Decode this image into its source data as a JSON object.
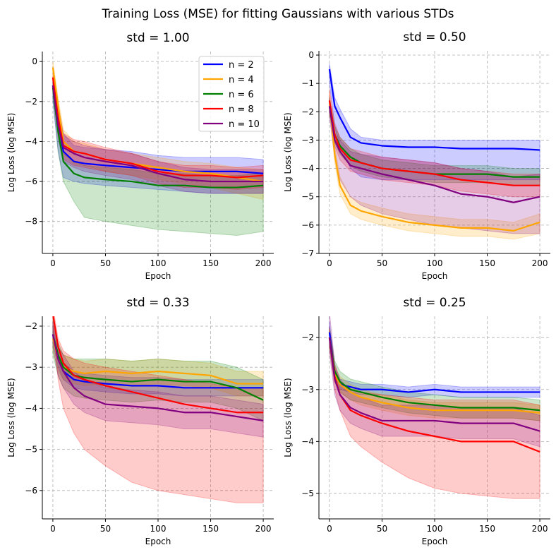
{
  "suptitle": "Training Loss (MSE) for fitting Gaussians with various STDs",
  "chart_data": [
    {
      "type": "line",
      "title": "std = 1.00",
      "xlabel": "Epoch",
      "ylabel": "Log Loss (log MSE)",
      "xlim": [
        -10,
        210
      ],
      "ylim": [
        -9.6,
        0.5
      ],
      "xticks": [
        0,
        50,
        100,
        150,
        200
      ],
      "yticks": [
        0,
        -2,
        -4,
        -6,
        -8
      ],
      "grid": true,
      "legend": "top-right",
      "x": [
        0,
        5,
        10,
        20,
        30,
        50,
        75,
        100,
        125,
        150,
        175,
        200
      ],
      "series": [
        {
          "name": "n = 2",
          "color": "#0000ff",
          "mean": [
            -1.2,
            -3.0,
            -4.5,
            -5.0,
            -5.1,
            -5.2,
            -5.3,
            -5.4,
            -5.5,
            -5.5,
            -5.5,
            -5.6
          ],
          "lower": [
            -2.0,
            -4.5,
            -5.8,
            -6.0,
            -6.1,
            -6.2,
            -6.3,
            -6.4,
            -6.5,
            -6.6,
            -6.6,
            -6.6
          ],
          "upper": [
            -0.8,
            -2.2,
            -3.6,
            -4.2,
            -4.3,
            -4.4,
            -4.5,
            -4.7,
            -4.8,
            -4.8,
            -4.8,
            -4.9
          ]
        },
        {
          "name": "n = 4",
          "color": "#ffa500",
          "mean": [
            -0.3,
            -2.2,
            -4.0,
            -4.5,
            -4.6,
            -4.9,
            -5.1,
            -5.3,
            -5.5,
            -5.6,
            -5.8,
            -6.0
          ],
          "lower": [
            -0.8,
            -2.8,
            -4.6,
            -5.1,
            -5.2,
            -5.5,
            -5.7,
            -5.9,
            -6.1,
            -6.3,
            -6.6,
            -6.9
          ],
          "upper": [
            0.0,
            -1.8,
            -3.4,
            -4.0,
            -4.1,
            -4.4,
            -4.6,
            -4.8,
            -5.0,
            -5.1,
            -5.3,
            -5.4
          ]
        },
        {
          "name": "n = 6",
          "color": "#008000",
          "mean": [
            -1.3,
            -3.5,
            -5.0,
            -5.6,
            -5.8,
            -5.9,
            -6.0,
            -6.2,
            -6.2,
            -6.3,
            -6.3,
            -6.2
          ],
          "lower": [
            -1.8,
            -4.5,
            -6.0,
            -7.0,
            -7.8,
            -8.0,
            -8.2,
            -8.4,
            -8.5,
            -8.6,
            -8.7,
            -8.5
          ],
          "upper": [
            -1.0,
            -3.0,
            -4.6,
            -5.0,
            -5.2,
            -5.3,
            -5.4,
            -5.6,
            -5.6,
            -5.7,
            -5.7,
            -5.6
          ]
        },
        {
          "name": "n = 8",
          "color": "#ff0000",
          "mean": [
            -0.8,
            -2.8,
            -4.2,
            -4.5,
            -4.6,
            -4.9,
            -5.1,
            -5.5,
            -5.7,
            -5.7,
            -5.8,
            -5.7
          ],
          "lower": [
            -1.4,
            -3.5,
            -4.9,
            -5.2,
            -5.3,
            -5.5,
            -5.7,
            -6.1,
            -6.3,
            -6.3,
            -6.4,
            -6.3
          ],
          "upper": [
            -0.6,
            -2.2,
            -3.6,
            -3.9,
            -4.0,
            -4.3,
            -4.6,
            -5.0,
            -5.2,
            -5.2,
            -5.3,
            -5.2
          ]
        },
        {
          "name": "n = 10",
          "color": "#800080",
          "mean": [
            -1.2,
            -3.2,
            -4.3,
            -4.6,
            -4.8,
            -5.0,
            -5.2,
            -5.6,
            -5.9,
            -6.0,
            -6.0,
            -6.0
          ],
          "lower": [
            -1.6,
            -3.9,
            -5.0,
            -5.3,
            -5.5,
            -5.7,
            -5.9,
            -6.2,
            -6.5,
            -6.6,
            -6.6,
            -6.6
          ],
          "upper": [
            -0.9,
            -2.6,
            -3.7,
            -4.0,
            -4.2,
            -4.4,
            -4.6,
            -5.0,
            -5.3,
            -5.4,
            -5.4,
            -5.4
          ]
        }
      ]
    },
    {
      "type": "line",
      "title": "std = 0.50",
      "xlabel": "Epoch",
      "ylabel": "Log Loss (log MSE)",
      "xlim": [
        -10,
        210
      ],
      "ylim": [
        -7.0,
        0.15
      ],
      "xticks": [
        0,
        50,
        100,
        150,
        200
      ],
      "yticks": [
        0,
        -1,
        -2,
        -3,
        -4,
        -5,
        -6,
        -7
      ],
      "grid": true,
      "x": [
        0,
        5,
        10,
        20,
        30,
        50,
        75,
        100,
        125,
        150,
        175,
        200
      ],
      "series": [
        {
          "name": "n = 2",
          "color": "#0000ff",
          "mean": [
            -0.5,
            -1.8,
            -2.2,
            -2.9,
            -3.1,
            -3.2,
            -3.25,
            -3.25,
            -3.3,
            -3.3,
            -3.3,
            -3.35
          ],
          "lower": [
            -1.0,
            -2.5,
            -3.2,
            -4.0,
            -4.3,
            -4.4,
            -4.4,
            -4.4,
            -4.4,
            -4.4,
            -4.4,
            -4.4
          ],
          "upper": [
            -0.3,
            -1.5,
            -1.9,
            -2.6,
            -2.9,
            -3.0,
            -3.0,
            -3.0,
            -3.0,
            -3.0,
            -3.0,
            -3.0
          ]
        },
        {
          "name": "n = 4",
          "color": "#ffa500",
          "mean": [
            -1.6,
            -3.5,
            -4.6,
            -5.3,
            -5.5,
            -5.7,
            -5.9,
            -6.0,
            -6.1,
            -6.1,
            -6.2,
            -5.9
          ],
          "lower": [
            -1.9,
            -3.8,
            -4.9,
            -5.6,
            -5.8,
            -6.0,
            -6.2,
            -6.3,
            -6.4,
            -6.4,
            -6.5,
            -6.3
          ],
          "upper": [
            -1.3,
            -3.2,
            -4.3,
            -5.0,
            -5.2,
            -5.4,
            -5.6,
            -5.7,
            -5.8,
            -5.8,
            -5.9,
            -5.6
          ]
        },
        {
          "name": "n = 6",
          "color": "#008000",
          "mean": [
            -1.8,
            -2.8,
            -3.2,
            -3.6,
            -3.8,
            -4.0,
            -4.1,
            -4.2,
            -4.2,
            -4.2,
            -4.3,
            -4.3
          ],
          "lower": [
            -2.1,
            -3.1,
            -3.5,
            -3.9,
            -4.1,
            -4.3,
            -4.4,
            -4.5,
            -4.5,
            -4.5,
            -4.6,
            -4.6
          ],
          "upper": [
            -1.5,
            -2.5,
            -2.9,
            -3.3,
            -3.5,
            -3.7,
            -3.8,
            -3.9,
            -3.9,
            -3.9,
            -4.0,
            -4.0
          ]
        },
        {
          "name": "n = 8",
          "color": "#ff0000",
          "mean": [
            -1.6,
            -2.8,
            -3.3,
            -3.7,
            -3.8,
            -4.0,
            -4.1,
            -4.2,
            -4.4,
            -4.5,
            -4.6,
            -4.6
          ],
          "lower": [
            -2.0,
            -3.2,
            -3.7,
            -4.1,
            -4.2,
            -4.4,
            -4.5,
            -4.6,
            -4.8,
            -4.9,
            -5.0,
            -5.0
          ],
          "upper": [
            -1.2,
            -2.4,
            -2.9,
            -3.3,
            -3.4,
            -3.6,
            -3.7,
            -3.8,
            -4.0,
            -4.1,
            -4.2,
            -4.2
          ]
        },
        {
          "name": "n = 10",
          "color": "#800080",
          "mean": [
            -1.8,
            -3.0,
            -3.4,
            -3.9,
            -4.0,
            -4.2,
            -4.4,
            -4.6,
            -4.9,
            -5.0,
            -5.2,
            -5.0
          ],
          "lower": [
            -2.2,
            -3.6,
            -4.4,
            -5.0,
            -5.3,
            -5.6,
            -5.8,
            -6.0,
            -6.1,
            -6.2,
            -6.3,
            -6.3
          ],
          "upper": [
            -1.5,
            -2.6,
            -3.0,
            -3.4,
            -3.5,
            -3.6,
            -3.7,
            -3.8,
            -4.0,
            -4.1,
            -4.3,
            -4.2
          ]
        }
      ]
    },
    {
      "type": "line",
      "title": "std = 0.33",
      "xlabel": "Epoch",
      "ylabel": "Log Loss (log MSE)",
      "xlim": [
        -10,
        210
      ],
      "ylim": [
        -6.69,
        -1.76
      ],
      "xticks": [
        0,
        50,
        100,
        150,
        200
      ],
      "yticks": [
        -2,
        -3,
        -4,
        -5,
        -6
      ],
      "grid": true,
      "x": [
        0,
        5,
        10,
        20,
        30,
        50,
        75,
        100,
        125,
        150,
        175,
        200
      ],
      "series": [
        {
          "name": "n = 2",
          "color": "#0000ff",
          "mean": [
            -2.2,
            -2.8,
            -3.1,
            -3.3,
            -3.35,
            -3.4,
            -3.45,
            -3.45,
            -3.5,
            -3.5,
            -3.5,
            -3.5
          ],
          "lower": [
            -2.4,
            -3.0,
            -3.3,
            -3.5,
            -3.55,
            -3.6,
            -3.65,
            -3.65,
            -3.7,
            -3.7,
            -3.7,
            -3.7
          ],
          "upper": [
            -2.0,
            -2.6,
            -2.9,
            -3.1,
            -3.15,
            -3.2,
            -3.25,
            -3.25,
            -3.3,
            -3.3,
            -3.3,
            -3.3
          ]
        },
        {
          "name": "n = 4",
          "color": "#ffa500",
          "mean": [
            -2.3,
            -2.8,
            -3.0,
            -3.1,
            -3.15,
            -3.1,
            -3.15,
            -3.1,
            -3.15,
            -3.2,
            -3.4,
            -3.4
          ],
          "lower": [
            -2.6,
            -3.1,
            -3.3,
            -3.4,
            -3.45,
            -3.4,
            -3.45,
            -3.4,
            -3.45,
            -3.5,
            -3.7,
            -3.7
          ],
          "upper": [
            -2.0,
            -2.5,
            -2.7,
            -2.8,
            -2.85,
            -2.8,
            -2.85,
            -2.8,
            -2.85,
            -2.9,
            -3.1,
            -3.1
          ]
        },
        {
          "name": "n = 6",
          "color": "#008000",
          "mean": [
            -2.2,
            -2.7,
            -3.0,
            -3.2,
            -3.25,
            -3.3,
            -3.35,
            -3.3,
            -3.35,
            -3.35,
            -3.5,
            -3.8
          ],
          "lower": [
            -2.7,
            -3.2,
            -3.5,
            -3.7,
            -3.75,
            -3.8,
            -3.85,
            -3.8,
            -3.85,
            -3.85,
            -4.0,
            -4.3
          ],
          "upper": [
            -1.8,
            -2.4,
            -2.7,
            -2.8,
            -2.8,
            -2.8,
            -2.85,
            -2.8,
            -2.85,
            -2.85,
            -3.0,
            -3.3
          ]
        },
        {
          "name": "n = 8",
          "color": "#ff0000",
          "mean": [
            -1.7,
            -2.5,
            -2.9,
            -3.2,
            -3.3,
            -3.45,
            -3.6,
            -3.75,
            -3.9,
            -4.0,
            -4.1,
            -4.1
          ],
          "lower": [
            -2.0,
            -3.3,
            -4.0,
            -4.6,
            -5.0,
            -5.4,
            -5.8,
            -6.0,
            -6.1,
            -6.2,
            -6.3,
            -6.3
          ],
          "upper": [
            -1.5,
            -2.3,
            -2.6,
            -2.8,
            -2.9,
            -3.0,
            -3.1,
            -3.2,
            -3.3,
            -3.4,
            -3.5,
            -3.5
          ]
        },
        {
          "name": "n = 10",
          "color": "#800080",
          "mean": [
            -2.2,
            -2.8,
            -3.1,
            -3.5,
            -3.7,
            -3.9,
            -3.95,
            -4.0,
            -4.1,
            -4.1,
            -4.2,
            -4.3
          ],
          "lower": [
            -2.5,
            -3.2,
            -3.5,
            -3.9,
            -4.1,
            -4.3,
            -4.35,
            -4.4,
            -4.5,
            -4.5,
            -4.6,
            -4.7
          ],
          "upper": [
            -1.9,
            -2.5,
            -2.7,
            -3.1,
            -3.3,
            -3.5,
            -3.55,
            -3.6,
            -3.7,
            -3.7,
            -3.8,
            -3.9
          ]
        }
      ]
    },
    {
      "type": "line",
      "title": "std = 0.25",
      "xlabel": "Epoch",
      "ylabel": "Log Loss (log MSE)",
      "xlim": [
        -10,
        210
      ],
      "ylim": [
        -5.49,
        -1.59
      ],
      "xticks": [
        0,
        50,
        100,
        150,
        200
      ],
      "yticks": [
        -2,
        -3,
        -4,
        -5
      ],
      "grid": true,
      "x": [
        0,
        5,
        10,
        20,
        30,
        50,
        75,
        100,
        125,
        150,
        175,
        200
      ],
      "series": [
        {
          "name": "n = 2",
          "color": "#0000ff",
          "mean": [
            -1.9,
            -2.7,
            -2.9,
            -2.95,
            -3.0,
            -3.0,
            -3.05,
            -3.0,
            -3.05,
            -3.05,
            -3.05,
            -3.05
          ],
          "lower": [
            -2.0,
            -2.8,
            -3.0,
            -3.05,
            -3.1,
            -3.1,
            -3.15,
            -3.1,
            -3.15,
            -3.15,
            -3.15,
            -3.15
          ],
          "upper": [
            -1.7,
            -2.6,
            -2.8,
            -2.85,
            -2.9,
            -2.9,
            -2.95,
            -2.9,
            -2.95,
            -2.95,
            -2.95,
            -2.95
          ]
        },
        {
          "name": "n = 4",
          "color": "#ffa500",
          "mean": [
            -2.0,
            -2.7,
            -2.9,
            -3.05,
            -3.15,
            -3.25,
            -3.35,
            -3.4,
            -3.4,
            -3.4,
            -3.4,
            -3.45
          ],
          "lower": [
            -2.15,
            -2.85,
            -3.05,
            -3.2,
            -3.3,
            -3.4,
            -3.5,
            -3.55,
            -3.55,
            -3.55,
            -3.55,
            -3.6
          ],
          "upper": [
            -1.85,
            -2.55,
            -2.75,
            -2.9,
            -3.0,
            -3.1,
            -3.2,
            -3.25,
            -3.25,
            -3.25,
            -3.25,
            -3.3
          ]
        },
        {
          "name": "n = 6",
          "color": "#008000",
          "mean": [
            -2.0,
            -2.65,
            -2.85,
            -3.0,
            -3.05,
            -3.15,
            -3.25,
            -3.3,
            -3.35,
            -3.35,
            -3.35,
            -3.4
          ],
          "lower": [
            -2.2,
            -2.85,
            -3.05,
            -3.2,
            -3.25,
            -3.35,
            -3.45,
            -3.5,
            -3.55,
            -3.55,
            -3.55,
            -3.6
          ],
          "upper": [
            -1.8,
            -2.45,
            -2.65,
            -2.8,
            -2.85,
            -2.95,
            -3.05,
            -3.1,
            -3.15,
            -3.15,
            -3.15,
            -3.2
          ]
        },
        {
          "name": "n = 8",
          "color": "#ff0000",
          "mean": [
            -2.0,
            -2.75,
            -3.1,
            -3.4,
            -3.5,
            -3.65,
            -3.8,
            -3.9,
            -4.0,
            -4.0,
            -4.0,
            -4.2
          ],
          "lower": [
            -2.2,
            -3.0,
            -3.4,
            -3.9,
            -4.1,
            -4.4,
            -4.7,
            -4.9,
            -5.0,
            -5.05,
            -5.1,
            -5.1
          ],
          "upper": [
            -1.8,
            -2.55,
            -2.85,
            -3.0,
            -3.05,
            -3.1,
            -3.15,
            -3.2,
            -3.2,
            -3.2,
            -3.2,
            -3.3
          ]
        },
        {
          "name": "n = 10",
          "color": "#800080",
          "mean": [
            -2.0,
            -2.8,
            -3.1,
            -3.35,
            -3.45,
            -3.6,
            -3.6,
            -3.6,
            -3.65,
            -3.65,
            -3.65,
            -3.8
          ],
          "lower": [
            -2.3,
            -3.1,
            -3.4,
            -3.65,
            -3.75,
            -3.9,
            -3.9,
            -3.9,
            -3.95,
            -3.95,
            -3.95,
            -4.1
          ],
          "upper": [
            -1.5,
            -2.5,
            -2.8,
            -3.05,
            -3.15,
            -3.3,
            -3.3,
            -3.3,
            -3.35,
            -3.35,
            -3.35,
            -3.5
          ]
        }
      ]
    }
  ]
}
